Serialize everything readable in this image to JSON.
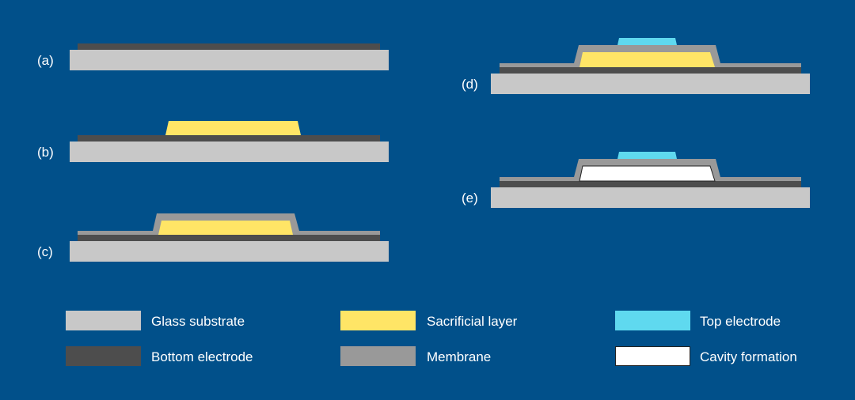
{
  "colors": {
    "background": "#01508a",
    "glass_substrate": "#c8c8c8",
    "bottom_electrode": "#4d4d4d",
    "sacrificial_layer": "#ffe566",
    "membrane": "#999999",
    "top_electrode": "#5fd9ef",
    "cavity": "#ffffff"
  },
  "steps": [
    {
      "label": "(a)"
    },
    {
      "label": "(b)"
    },
    {
      "label": "(c)"
    },
    {
      "label": "(d)"
    },
    {
      "label": "(e)"
    }
  ],
  "legend": [
    {
      "label": "Glass substrate",
      "color_key": "glass_substrate"
    },
    {
      "label": "Sacrificial layer",
      "color_key": "sacrificial_layer"
    },
    {
      "label": "Top electrode",
      "color_key": "top_electrode"
    },
    {
      "label": "Bottom electrode",
      "color_key": "bottom_electrode"
    },
    {
      "label": "Membrane",
      "color_key": "membrane"
    },
    {
      "label": "Cavity formation",
      "color_key": "cavity"
    }
  ]
}
